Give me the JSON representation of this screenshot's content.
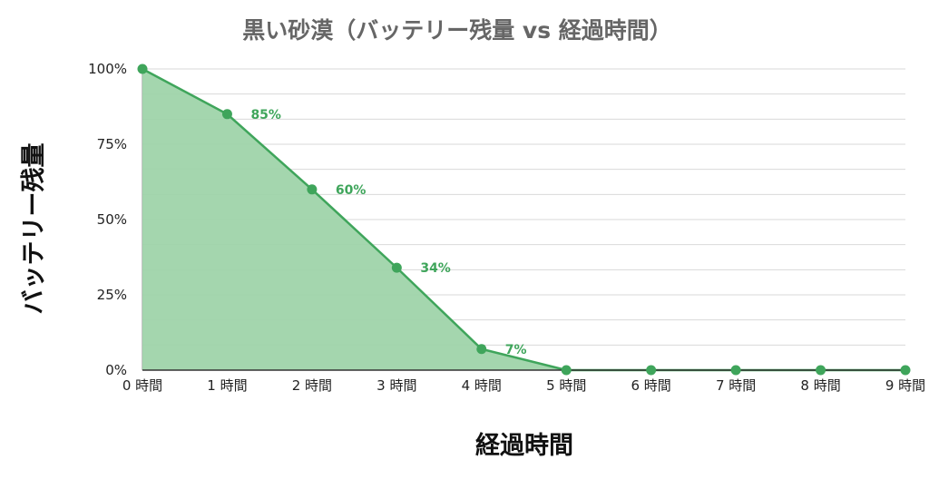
{
  "chart_data": {
    "type": "area",
    "title": "黒い砂漠（バッテリー残量 vs 経過時間）",
    "xlabel": "経過時間",
    "ylabel": "バッテリー残量",
    "categories": [
      "0 時間",
      "1 時間",
      "2 時間",
      "3 時間",
      "4 時間",
      "5 時間",
      "6 時間",
      "7 時間",
      "8 時間",
      "9 時間"
    ],
    "series": [
      {
        "values": [
          100,
          85,
          60,
          34,
          7,
          0,
          0,
          0,
          0,
          0
        ]
      }
    ],
    "data_labels": [
      "",
      "85%",
      "60%",
      "34%",
      "7%",
      "",
      "",
      "",
      "",
      ""
    ],
    "y_ticks": [
      "0%",
      "25%",
      "50%",
      "75%",
      "100%"
    ],
    "y_tick_values": [
      0,
      25,
      50,
      75,
      100
    ],
    "ylim": [
      0,
      100
    ],
    "grid": true,
    "colors": {
      "line": "#3fa55b",
      "fill": "#9fd4aa",
      "grid": "#d9d9d9"
    }
  }
}
